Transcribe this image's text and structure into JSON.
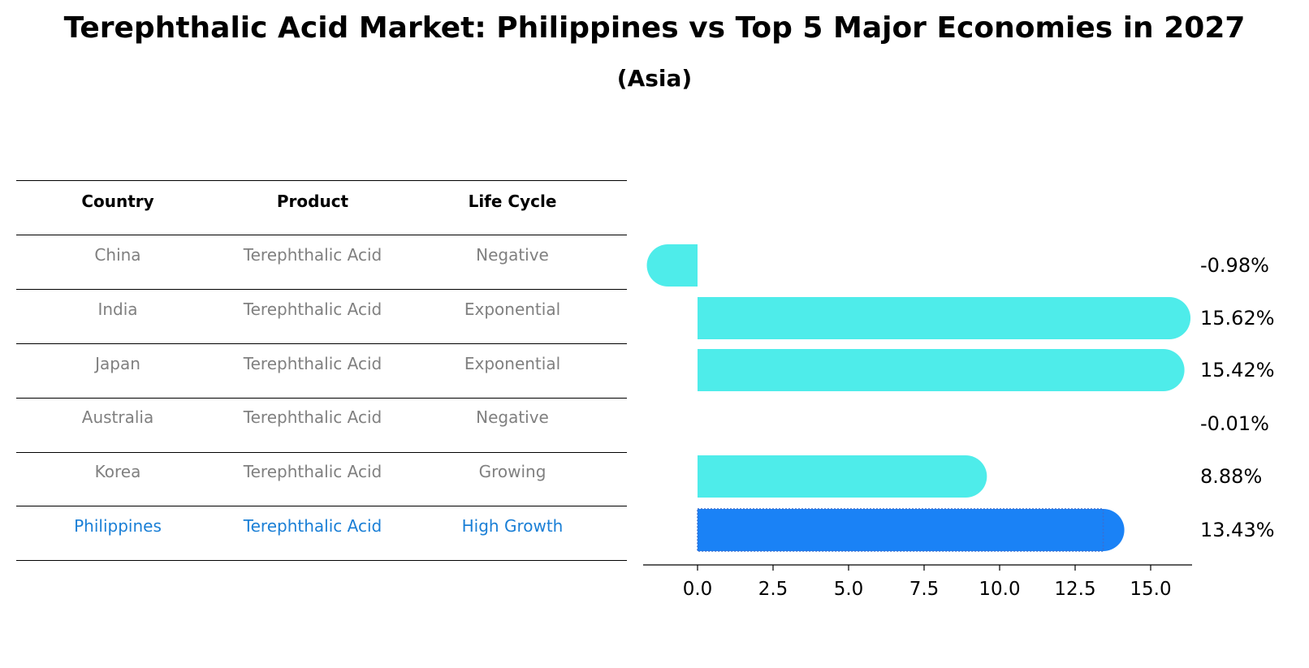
{
  "title": "Terephthalic Acid Market: Philippines vs Top 5 Major Economies in 2027",
  "subtitle": "(Asia)",
  "table": {
    "headers": [
      "Country",
      "Product",
      "Life Cycle"
    ],
    "rows": [
      {
        "country": "China",
        "product": "Terephthalic Acid",
        "lifecycle": "Negative",
        "highlight": false
      },
      {
        "country": "India",
        "product": "Terephthalic Acid",
        "lifecycle": "Exponential",
        "highlight": false
      },
      {
        "country": "Japan",
        "product": "Terephthalic Acid",
        "lifecycle": "Exponential",
        "highlight": false
      },
      {
        "country": "Australia",
        "product": "Terephthalic Acid",
        "lifecycle": "Negative",
        "highlight": false
      },
      {
        "country": "Korea",
        "product": "Terephthalic Acid",
        "lifecycle": "Growing",
        "highlight": false
      },
      {
        "country": "Philippines",
        "product": "Terephthalic Acid",
        "lifecycle": "High Growth",
        "highlight": true
      }
    ]
  },
  "colors": {
    "bar": "#4eecea",
    "highlight_bar": "#1a82f6",
    "highlight_text": "#1a7fd6",
    "muted_text": "#808080"
  },
  "chart_data": {
    "type": "bar",
    "orientation": "horizontal",
    "categories": [
      "China",
      "India",
      "Japan",
      "Australia",
      "Korea",
      "Philippines"
    ],
    "values": [
      -0.98,
      15.62,
      15.42,
      -0.01,
      8.88,
      13.43
    ],
    "value_labels": [
      "-0.98%",
      "15.62%",
      "15.42%",
      "-0.01%",
      "8.88%",
      "13.43%"
    ],
    "highlight_index": 5,
    "xlim": [
      -1.8,
      16.4
    ],
    "xticks": [
      0.0,
      2.5,
      5.0,
      7.5,
      10.0,
      12.5,
      15.0
    ],
    "xtick_labels": [
      "0.0",
      "2.5",
      "5.0",
      "7.5",
      "10.0",
      "12.5",
      "15.0"
    ],
    "grid": false
  }
}
